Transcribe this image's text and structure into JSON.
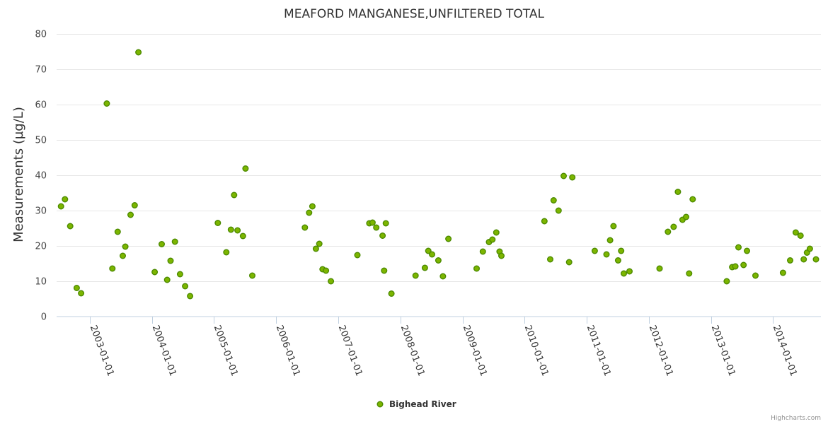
{
  "chart_data": {
    "type": "scatter",
    "title": "MEAFORD MANGANESE,UNFILTERED TOTAL",
    "xlabel": "",
    "ylabel": "Measurements (µg/L)",
    "ylim": [
      0,
      80
    ],
    "yticks": [
      0,
      10,
      20,
      30,
      40,
      50,
      60,
      70,
      80
    ],
    "xlim": [
      "2002-06-20",
      "2014-10-10"
    ],
    "xticks": [
      "2003-01-01",
      "2004-01-01",
      "2005-01-01",
      "2006-01-01",
      "2007-01-01",
      "2008-01-01",
      "2009-01-01",
      "2010-01-01",
      "2011-01-01",
      "2012-01-01",
      "2013-01-01",
      "2014-01-01"
    ],
    "grid": true,
    "legend": "bottom-center",
    "series": [
      {
        "name": "Bighead River",
        "color": "#7cb500",
        "border_color": "#4c8a00",
        "points": [
          [
            "2002-07-16",
            31.2
          ],
          [
            "2002-08-08",
            33.2
          ],
          [
            "2002-09-08",
            25.6
          ],
          [
            "2002-10-16",
            8.1
          ],
          [
            "2002-11-11",
            6.6
          ],
          [
            "2003-04-11",
            60.3
          ],
          [
            "2003-05-14",
            13.6
          ],
          [
            "2003-06-14",
            24.0
          ],
          [
            "2003-07-14",
            17.2
          ],
          [
            "2003-07-29",
            19.8
          ],
          [
            "2003-08-29",
            28.8
          ],
          [
            "2003-09-22",
            31.5
          ],
          [
            "2003-10-14",
            74.8
          ],
          [
            "2004-01-18",
            12.6
          ],
          [
            "2004-02-28",
            20.5
          ],
          [
            "2004-03-31",
            10.4
          ],
          [
            "2004-04-20",
            15.8
          ],
          [
            "2004-05-16",
            21.2
          ],
          [
            "2004-06-15",
            12.0
          ],
          [
            "2004-07-15",
            8.6
          ],
          [
            "2004-08-13",
            5.8
          ],
          [
            "2005-01-23",
            26.5
          ],
          [
            "2005-03-14",
            18.2
          ],
          [
            "2005-04-10",
            24.6
          ],
          [
            "2005-04-29",
            34.4
          ],
          [
            "2005-05-19",
            24.4
          ],
          [
            "2005-06-20",
            22.8
          ],
          [
            "2005-07-05",
            41.9
          ],
          [
            "2005-08-14",
            11.6
          ],
          [
            "2006-06-19",
            25.2
          ],
          [
            "2006-07-14",
            29.4
          ],
          [
            "2006-08-02",
            31.2
          ],
          [
            "2006-08-23",
            19.2
          ],
          [
            "2006-09-12",
            20.6
          ],
          [
            "2006-10-01",
            13.4
          ],
          [
            "2006-10-21",
            13.0
          ],
          [
            "2006-11-19",
            10.0
          ],
          [
            "2007-04-24",
            17.4
          ],
          [
            "2007-07-03",
            26.4
          ],
          [
            "2007-07-22",
            26.6
          ],
          [
            "2007-08-13",
            25.2
          ],
          [
            "2007-09-19",
            22.9
          ],
          [
            "2007-09-28",
            13.0
          ],
          [
            "2007-10-08",
            26.4
          ],
          [
            "2007-11-10",
            6.5
          ],
          [
            "2008-03-31",
            11.6
          ],
          [
            "2008-05-25",
            13.8
          ],
          [
            "2008-06-14",
            18.6
          ],
          [
            "2008-07-06",
            17.6
          ],
          [
            "2008-08-12",
            15.9
          ],
          [
            "2008-09-08",
            11.4
          ],
          [
            "2008-10-10",
            22.0
          ],
          [
            "2009-03-25",
            13.6
          ],
          [
            "2009-05-01",
            18.4
          ],
          [
            "2009-06-06",
            21.1
          ],
          [
            "2009-06-26",
            21.8
          ],
          [
            "2009-07-19",
            23.8
          ],
          [
            "2009-08-07",
            18.4
          ],
          [
            "2009-08-18",
            17.2
          ],
          [
            "2010-04-28",
            27.0
          ],
          [
            "2010-06-01",
            16.2
          ],
          [
            "2010-06-21",
            32.9
          ],
          [
            "2010-07-20",
            30.0
          ],
          [
            "2010-08-19",
            39.8
          ],
          [
            "2010-09-20",
            15.4
          ],
          [
            "2010-10-09",
            39.4
          ],
          [
            "2011-02-18",
            18.6
          ],
          [
            "2011-04-28",
            17.6
          ],
          [
            "2011-05-19",
            21.6
          ],
          [
            "2011-06-08",
            25.6
          ],
          [
            "2011-07-05",
            15.9
          ],
          [
            "2011-07-23",
            18.6
          ],
          [
            "2011-08-08",
            12.2
          ],
          [
            "2011-09-10",
            12.8
          ],
          [
            "2012-03-05",
            13.6
          ],
          [
            "2012-04-23",
            24.0
          ],
          [
            "2012-05-27",
            25.4
          ],
          [
            "2012-06-21",
            35.3
          ],
          [
            "2012-07-18",
            27.4
          ],
          [
            "2012-08-08",
            28.2
          ],
          [
            "2012-08-26",
            12.2
          ],
          [
            "2012-09-16",
            33.2
          ],
          [
            "2013-04-04",
            10.0
          ],
          [
            "2013-05-06",
            14.0
          ],
          [
            "2013-05-25",
            14.2
          ],
          [
            "2013-06-12",
            19.6
          ],
          [
            "2013-07-12",
            14.6
          ],
          [
            "2013-08-01",
            18.6
          ],
          [
            "2013-09-20",
            11.6
          ],
          [
            "2014-03-01",
            12.4
          ],
          [
            "2014-04-12",
            15.9
          ],
          [
            "2014-05-15",
            23.8
          ],
          [
            "2014-06-12",
            22.9
          ],
          [
            "2014-07-01",
            16.2
          ],
          [
            "2014-07-20",
            18.1
          ],
          [
            "2014-08-06",
            19.2
          ],
          [
            "2014-09-11",
            16.2
          ]
        ]
      }
    ],
    "credits": "Highcharts.com"
  }
}
